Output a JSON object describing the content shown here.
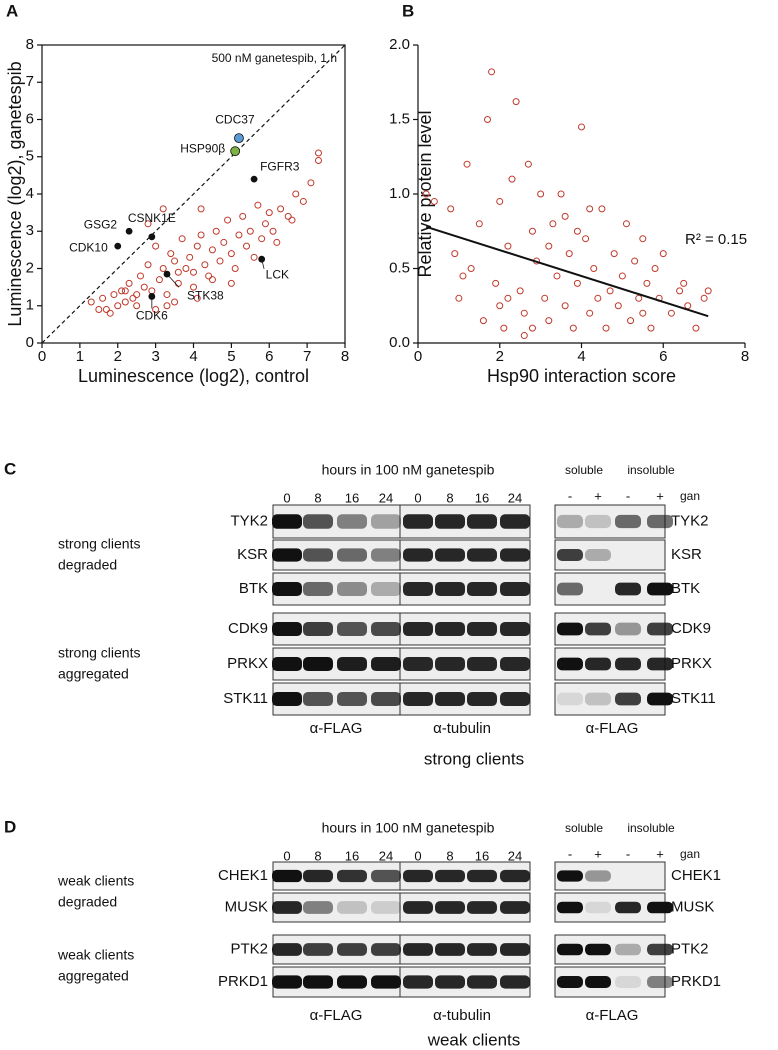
{
  "chart_data": [
    {
      "type": "scatter",
      "panel": "A",
      "xlabel": "Luminescence (log2), control",
      "ylabel": "Luminescence (log2), ganetespib",
      "annotation": "500 nM ganetespib, 1 h",
      "xlim": [
        0,
        8
      ],
      "ylim": [
        0,
        8
      ],
      "xticks": [
        0,
        1,
        2,
        3,
        4,
        5,
        6,
        7,
        8
      ],
      "yticks": [
        0,
        1,
        2,
        3,
        4,
        5,
        6,
        7,
        8
      ],
      "diagonal": true,
      "series": [
        {
          "color": "#c0392b",
          "x": [
            1.3,
            1.5,
            1.6,
            1.8,
            1.9,
            2.0,
            2.1,
            2.2,
            2.3,
            2.4,
            2.5,
            2.6,
            2.7,
            2.8,
            2.9,
            3.0,
            3.1,
            3.2,
            3.3,
            3.4,
            3.5,
            3.6,
            3.7,
            3.8,
            3.9,
            4.0,
            4.1,
            4.2,
            4.3,
            4.4,
            4.5,
            4.6,
            4.7,
            4.8,
            4.9,
            5.0,
            5.1,
            5.2,
            5.3,
            5.4,
            5.5,
            5.6,
            5.7,
            5.8,
            5.9,
            6.0,
            6.1,
            6.2,
            6.3,
            6.5,
            6.7,
            6.9,
            7.1,
            7.3,
            2.5,
            3.0,
            3.5,
            4.0,
            4.5,
            5.0,
            3.2,
            2.8,
            4.2,
            6.6,
            7.3,
            3.3,
            4.1,
            1.7,
            2.2,
            3.6
          ],
          "values": [
            1.1,
            0.9,
            1.2,
            0.8,
            1.3,
            1.0,
            1.4,
            1.1,
            1.6,
            1.2,
            1.3,
            1.8,
            1.5,
            2.1,
            1.4,
            2.6,
            1.7,
            2.0,
            1.3,
            2.4,
            2.2,
            1.6,
            2.8,
            2.0,
            2.3,
            1.9,
            2.6,
            2.9,
            2.1,
            1.8,
            2.5,
            3.0,
            2.2,
            2.7,
            3.3,
            2.4,
            2.0,
            2.9,
            3.4,
            2.6,
            3.0,
            2.3,
            3.7,
            2.8,
            3.2,
            3.5,
            3.0,
            2.7,
            3.6,
            3.4,
            4.0,
            3.8,
            4.3,
            4.9,
            1.0,
            0.9,
            1.1,
            1.5,
            1.7,
            1.6,
            3.6,
            3.2,
            3.6,
            3.3,
            5.1,
            1.0,
            1.2,
            0.9,
            1.4,
            1.9
          ]
        }
      ],
      "points": [
        {
          "label": "CDC37",
          "x": 5.2,
          "y": 5.5,
          "color": "#5b9bd5"
        },
        {
          "label": "HSP90β",
          "x": 5.1,
          "y": 5.15,
          "color": "#7cb342"
        },
        {
          "label": "FGFR3",
          "x": 5.6,
          "y": 4.4,
          "color": "#111111"
        },
        {
          "label": "CSNK1E",
          "x": 2.9,
          "y": 2.85,
          "color": "#111111"
        },
        {
          "label": "GSG2",
          "x": 2.3,
          "y": 3.0,
          "color": "#111111"
        },
        {
          "label": "CDK10",
          "x": 2.0,
          "y": 2.6,
          "color": "#111111"
        },
        {
          "label": "LCK",
          "x": 5.8,
          "y": 2.25,
          "color": "#111111"
        },
        {
          "label": "STK38",
          "x": 3.3,
          "y": 1.85,
          "color": "#111111"
        },
        {
          "label": "CDK6",
          "x": 2.9,
          "y": 1.25,
          "color": "#111111"
        }
      ]
    },
    {
      "type": "scatter",
      "panel": "B",
      "xlabel": "Hsp90 interaction score",
      "ylabel": "Relative protein level",
      "annotation": "R² = 0.15",
      "xlim": [
        0,
        8
      ],
      "ylim": [
        0,
        2
      ],
      "xticks": [
        0,
        2,
        4,
        6,
        8
      ],
      "yticks": [
        {
          "value": 0,
          "label": "0.0"
        },
        0.5,
        {
          "value": 1,
          "label": "1.0"
        },
        1.5,
        {
          "value": 2,
          "label": "2.0"
        }
      ],
      "series": [
        {
          "color": "#c0392b",
          "x": [
            0.2,
            0.4,
            0.8,
            0.9,
            1.0,
            1.2,
            1.3,
            1.5,
            1.7,
            1.8,
            1.9,
            2.0,
            2.1,
            2.2,
            2.3,
            2.4,
            2.5,
            2.6,
            2.7,
            2.8,
            2.9,
            3.0,
            3.1,
            3.2,
            3.3,
            3.4,
            3.5,
            3.6,
            3.7,
            3.8,
            3.9,
            4.0,
            4.1,
            4.2,
            4.3,
            4.4,
            4.5,
            4.6,
            4.7,
            4.8,
            4.9,
            5.0,
            5.1,
            5.2,
            5.3,
            5.4,
            5.5,
            5.6,
            5.7,
            5.8,
            5.9,
            6.0,
            6.2,
            6.4,
            6.6,
            6.8,
            7.0,
            7.1,
            1.6,
            2.2,
            2.6,
            3.2,
            3.6,
            4.2,
            2.0,
            1.1,
            2.8,
            3.9,
            5.5,
            6.5
          ],
          "values": [
            1.0,
            0.95,
            0.9,
            0.6,
            0.3,
            1.2,
            0.5,
            0.8,
            1.5,
            1.82,
            0.4,
            0.95,
            0.1,
            0.65,
            1.1,
            1.62,
            0.35,
            0.2,
            1.2,
            0.75,
            0.55,
            1.0,
            0.3,
            0.15,
            0.8,
            0.45,
            1.0,
            0.25,
            0.6,
            0.1,
            0.4,
            1.45,
            0.7,
            0.2,
            0.5,
            0.3,
            0.9,
            0.1,
            0.35,
            0.6,
            0.25,
            0.45,
            0.8,
            0.15,
            0.55,
            0.3,
            0.2,
            0.4,
            0.1,
            0.5,
            0.3,
            0.6,
            0.2,
            0.35,
            0.25,
            0.1,
            0.3,
            0.35,
            0.15,
            0.3,
            0.05,
            0.65,
            0.85,
            0.9,
            0.25,
            0.45,
            0.1,
            0.75,
            0.7,
            0.4
          ]
        }
      ],
      "fit": {
        "x": [
          0.2,
          7.1
        ],
        "values": [
          0.78,
          0.18
        ],
        "color": "#111111"
      }
    }
  ],
  "panel_c": {
    "panel": "C",
    "header": "hours in 100 nM ganetespib",
    "timepoints": [
      "0",
      "8",
      "16",
      "24"
    ],
    "groups": [
      {
        "label": [
          "strong clients",
          "degraded"
        ],
        "rows": [
          "TYK2",
          "KSR",
          "BTK"
        ]
      },
      {
        "label": [
          "strong clients",
          "aggregated"
        ],
        "rows": [
          "CDK9",
          "PRKX",
          "STK11"
        ]
      }
    ],
    "antibodies": [
      "α-FLAG",
      "α-tubulin"
    ],
    "fraction_antibody": "α-FLAG",
    "fractions": [
      "soluble",
      "insoluble"
    ],
    "treatment": [
      "-",
      "+"
    ],
    "treatment_label": "gan",
    "caption": "strong clients"
  },
  "panel_d": {
    "panel": "D",
    "header": "hours in 100 nM ganetespib",
    "timepoints": [
      "0",
      "8",
      "16",
      "24"
    ],
    "groups": [
      {
        "label": [
          "weak clients",
          "degraded"
        ],
        "rows": [
          "CHEK1",
          "MUSK"
        ]
      },
      {
        "label": [
          "weak clients",
          "aggregated"
        ],
        "rows": [
          "PTK2",
          "PRKD1"
        ]
      }
    ],
    "antibodies": [
      "α-FLAG",
      "α-tubulin"
    ],
    "fraction_antibody": "α-FLAG",
    "fractions": [
      "soluble",
      "insoluble"
    ],
    "treatment": [
      "-",
      "+"
    ],
    "treatment_label": "gan",
    "caption": "weak clients"
  }
}
